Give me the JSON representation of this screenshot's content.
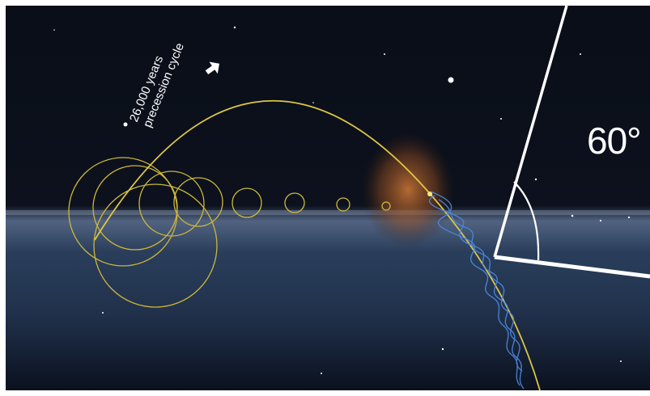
{
  "scene": {
    "angle_label": "60°",
    "cycle_label_line1": "26,000 years",
    "cycle_label_line2": "precession cycle",
    "colors": {
      "sky": "#000000",
      "plane": "#2b3e5c",
      "orbit": "#d9c23a",
      "helix": "#3f7ddb",
      "nebula": "#b0622a",
      "angle_lines": "#ffffff"
    },
    "icons": [
      "pointer-arrow-icon"
    ]
  }
}
